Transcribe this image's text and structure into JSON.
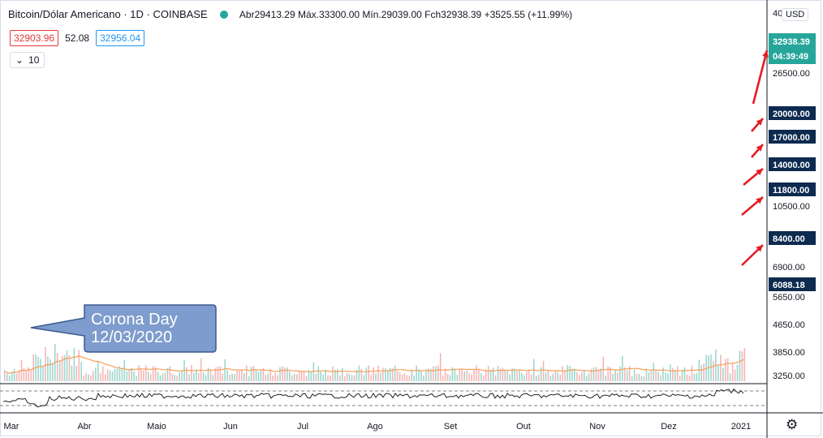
{
  "header": {
    "symbol": "Bitcoin/Dólar Americano · 1D · COINBASE",
    "open_label": "Abr",
    "open": "29413.29",
    "high_label": "Máx.",
    "high": "33300.00",
    "low_label": "Mín.",
    "low": "29039.00",
    "close_label": "Fch",
    "close": "32938.39",
    "change": "+3525.55 (+11.99%)"
  },
  "indicators": {
    "ma_red": "32903.96",
    "ma_mid": "52.08",
    "ma_blue": "32956.04",
    "length": "10"
  },
  "currency": "USD",
  "price_axis": {
    "ticks": [
      "40",
      "26500.00",
      "10500.00",
      "6900.00",
      "5650.00",
      "4650.00",
      "3850.00",
      "3250.00"
    ],
    "current_price": "32938.39",
    "countdown": "04:39:49"
  },
  "levels": [
    "20000.00",
    "17000.00",
    "14000.00",
    "11800.00",
    "8400.00",
    "6088.18"
  ],
  "time_axis": [
    "Mar",
    "Abr",
    "Maio",
    "Jun",
    "Jul",
    "Ago",
    "Set",
    "Out",
    "Nov",
    "Dez",
    "2021"
  ],
  "annotation": {
    "line1": "Corona Day",
    "line2": "12/03/2020"
  },
  "colors": {
    "up": "#26a69a",
    "level_line": "#1e3c60",
    "level_label_bg": "#0d2a4f",
    "ma_blue": "#2a9ad6",
    "ma_black": "#111111",
    "ma_pink": "#c2185b",
    "arrow": "#e51c23",
    "callout": "#7e9ccd",
    "volume_ma": "#f5a05a"
  },
  "chart_data": {
    "type": "candlestick",
    "title": "Bitcoin/Dólar Americano · 1D · COINBASE",
    "log_scale": true,
    "y_range": [
      3000,
      40000
    ],
    "x_range": [
      "2020-03-01",
      "2021-01-07"
    ],
    "horizontal_levels": [
      20000,
      17000,
      14000,
      11800,
      8400,
      6088.18
    ],
    "price_path": [
      {
        "date": "2020-03-01",
        "price": 8600
      },
      {
        "date": "2020-03-08",
        "price": 8000
      },
      {
        "date": "2020-03-12",
        "price": 4900
      },
      {
        "date": "2020-03-16",
        "price": 5100
      },
      {
        "date": "2020-03-25",
        "price": 6700
      },
      {
        "date": "2020-04-05",
        "price": 6800
      },
      {
        "date": "2020-04-20",
        "price": 7100
      },
      {
        "date": "2020-04-30",
        "price": 8700
      },
      {
        "date": "2020-05-10",
        "price": 9600
      },
      {
        "date": "2020-05-20",
        "price": 9200
      },
      {
        "date": "2020-06-01",
        "price": 9650
      },
      {
        "date": "2020-06-15",
        "price": 9400
      },
      {
        "date": "2020-07-01",
        "price": 9150
      },
      {
        "date": "2020-07-20",
        "price": 9200
      },
      {
        "date": "2020-07-27",
        "price": 11000
      },
      {
        "date": "2020-08-17",
        "price": 11900
      },
      {
        "date": "2020-09-03",
        "price": 11400
      },
      {
        "date": "2020-09-06",
        "price": 10200
      },
      {
        "date": "2020-09-20",
        "price": 10800
      },
      {
        "date": "2020-10-10",
        "price": 11100
      },
      {
        "date": "2020-10-22",
        "price": 12900
      },
      {
        "date": "2020-11-05",
        "price": 15500
      },
      {
        "date": "2020-11-15",
        "price": 16200
      },
      {
        "date": "2020-11-24",
        "price": 19000
      },
      {
        "date": "2020-11-26",
        "price": 17100
      },
      {
        "date": "2020-12-01",
        "price": 19500
      },
      {
        "date": "2020-12-10",
        "price": 18500
      },
      {
        "date": "2020-12-17",
        "price": 23000
      },
      {
        "date": "2020-12-26",
        "price": 26500
      },
      {
        "date": "2021-01-02",
        "price": 32938.39
      }
    ]
  }
}
